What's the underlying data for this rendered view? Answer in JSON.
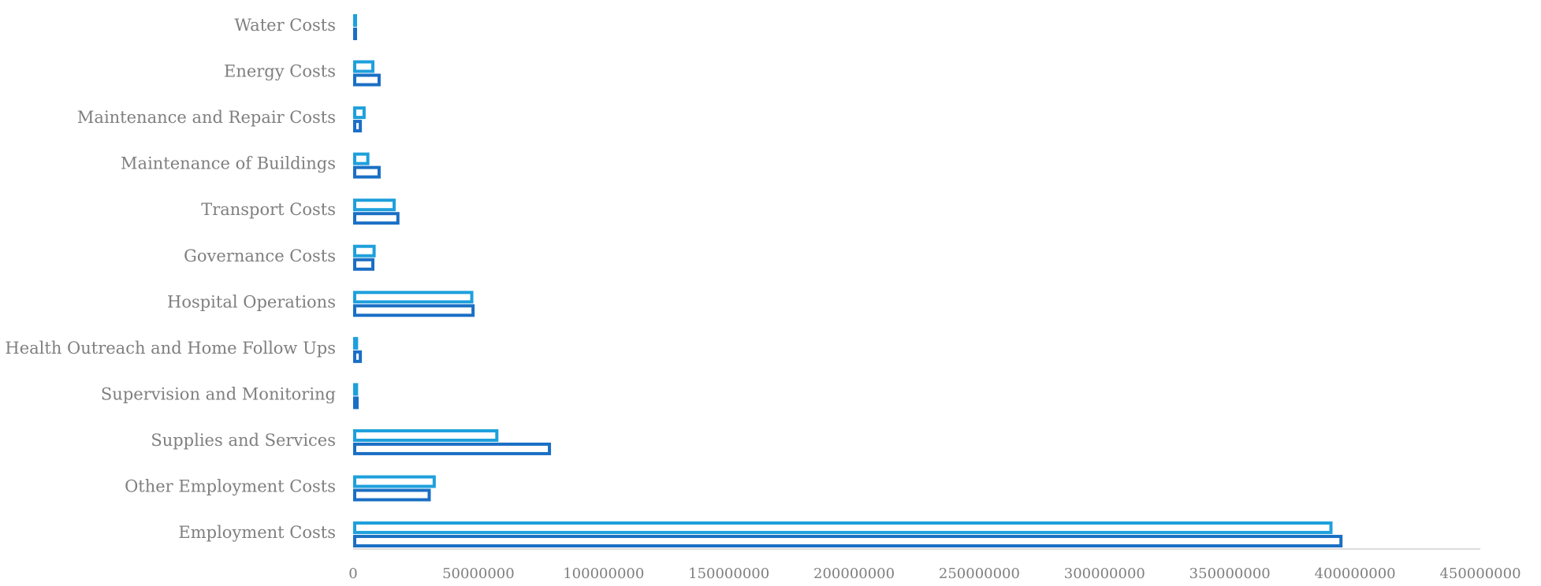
{
  "chart_data": {
    "type": "bar",
    "orientation": "horizontal",
    "title": "",
    "xlabel": "",
    "ylabel": "",
    "categories": [
      "Water Costs",
      "Energy Costs",
      "Maintenance and Repair Costs",
      "Maintenance of Buildings",
      "Transport Costs",
      "Governance Costs",
      "Hospital Operations",
      "Health Outreach and Home Follow Ups",
      "Supervision and Monitoring",
      "Supplies and Services",
      "Other Employment Costs",
      "Employment Costs"
    ],
    "series": [
      {
        "color": "#1ea0dc",
        "values": [
          1000000,
          8500000,
          5000000,
          6500000,
          17000000,
          9000000,
          48000000,
          2000000,
          2000000,
          58000000,
          33000000,
          391000000
        ]
      },
      {
        "color": "#1a6fc4",
        "values": [
          1200000,
          11000000,
          3500000,
          11000000,
          18500000,
          8500000,
          48500000,
          3500000,
          2200000,
          79000000,
          31000000,
          395000000
        ]
      }
    ],
    "xlim": [
      0,
      450000000
    ],
    "x_ticks": [
      "0",
      "50000000",
      "100000000",
      "150000000",
      "200000000",
      "250000000",
      "300000000",
      "350000000",
      "400000000",
      "450000000"
    ],
    "bar_style": "outlined",
    "grid": false,
    "legend": "none"
  }
}
